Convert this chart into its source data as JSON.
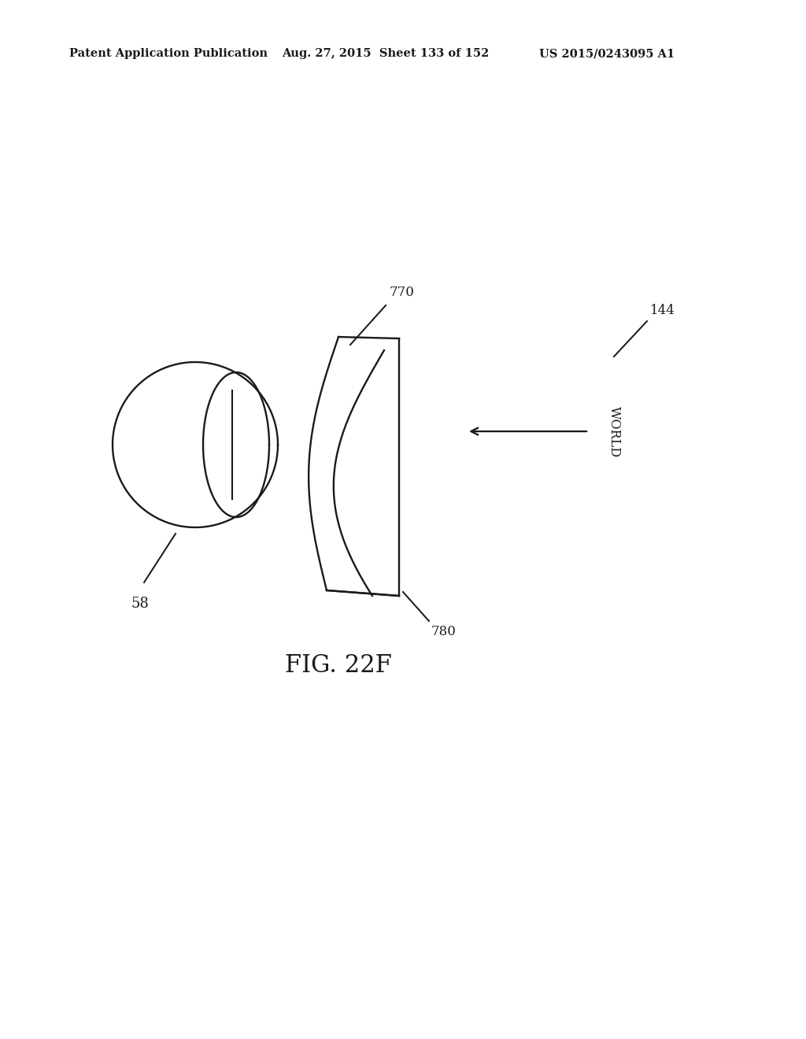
{
  "header_left": "Patent Application Publication",
  "header_mid": "Aug. 27, 2015  Sheet 133 of 152",
  "header_right": "US 2015/0243095 A1",
  "fig_label": "FIG. 22F",
  "label_58": "58",
  "label_770": "770",
  "label_780": "780",
  "label_144": "144",
  "label_world": "WORLD",
  "bg_color": "#ffffff",
  "line_color": "#1a1a1a",
  "line_width": 1.7
}
